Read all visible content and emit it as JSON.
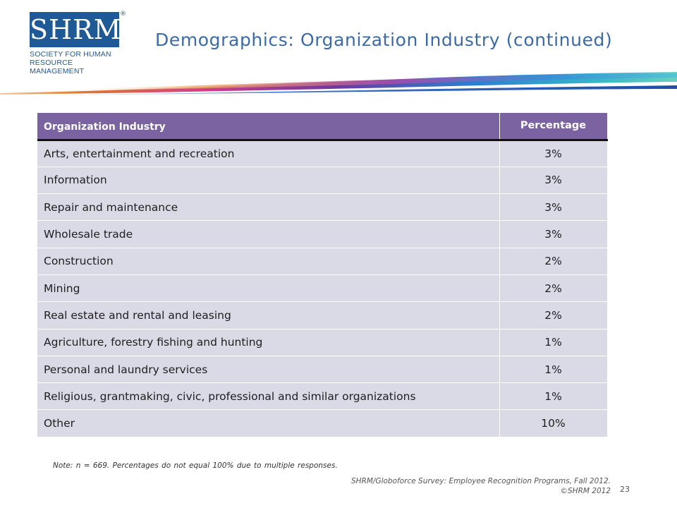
{
  "logo": {
    "mark": "SHRM",
    "registered": "®",
    "line1": "SOCIETY FOR HUMAN",
    "line2": "RESOURCE MANAGEMENT"
  },
  "title": "Demographics: Organization Industry (continued)",
  "table": {
    "headers": [
      "Organization Industry",
      "Percentage"
    ],
    "rows": [
      {
        "industry": "Arts, entertainment and recreation",
        "pct": "3%"
      },
      {
        "industry": "Information",
        "pct": "3%"
      },
      {
        "industry": "Repair and maintenance",
        "pct": "3%"
      },
      {
        "industry": "Wholesale trade",
        "pct": "3%"
      },
      {
        "industry": "Construction",
        "pct": "2%"
      },
      {
        "industry": "Mining",
        "pct": "2%"
      },
      {
        "industry": "Real estate and rental and leasing",
        "pct": "2%"
      },
      {
        "industry": "Agriculture, forestry fishing and hunting",
        "pct": "1%"
      },
      {
        "industry": "Personal and laundry services",
        "pct": "1%"
      },
      {
        "industry": "Religious, grantmaking, civic, professional and similar organizations",
        "pct": "1%"
      },
      {
        "industry": "Other",
        "pct": "10%"
      }
    ]
  },
  "note": "Note: n = 669. Percentages do not equal 100% due to multiple responses.",
  "source": {
    "line1": "SHRM/Globoforce Survey: Employee Recognition Programs, Fall 2012.",
    "line2": "©SHRM 2012"
  },
  "page_number": "23",
  "colors": {
    "brand_blue": "#1f5a96",
    "title_blue": "#3a6aa8",
    "header_purple": "#7b62a1",
    "row_fill": "#dad9e6"
  }
}
